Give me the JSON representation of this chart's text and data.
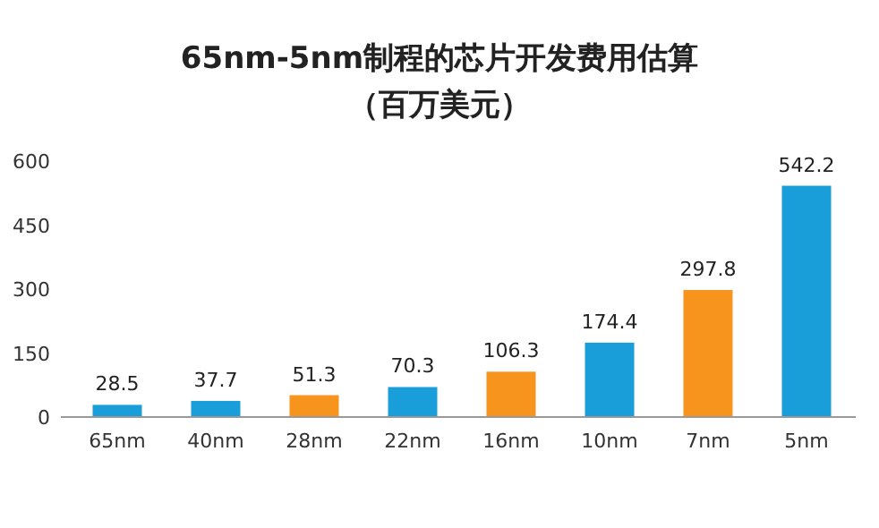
{
  "chart_data": {
    "type": "bar",
    "title": "65nm-5nm制程的芯片开发费用估算（百万美元）",
    "categories": [
      "65nm",
      "40nm",
      "28nm",
      "22nm",
      "16nm",
      "10nm",
      "7nm",
      "5nm"
    ],
    "values": [
      28.5,
      37.7,
      51.3,
      70.3,
      106.3,
      174.4,
      297.8,
      542.2
    ],
    "colors": [
      "#1a9ed9",
      "#1a9ed9",
      "#f7941d",
      "#1a9ed9",
      "#f7941d",
      "#1a9ed9",
      "#f7941d",
      "#1a9ed9"
    ],
    "ylim": [
      0,
      600
    ],
    "yticks": [
      0,
      150,
      300,
      450,
      600
    ],
    "data_labels": true
  }
}
